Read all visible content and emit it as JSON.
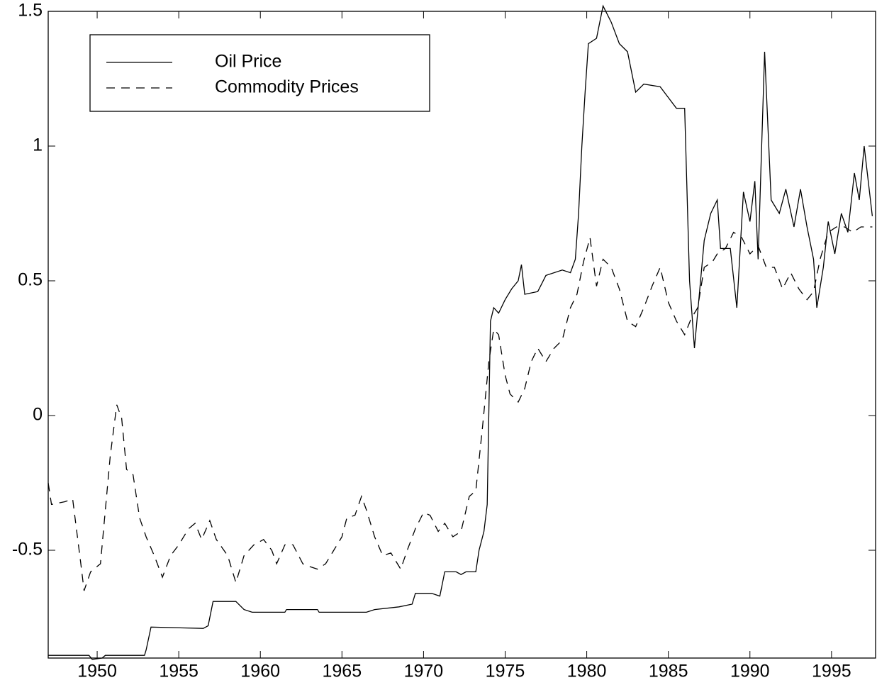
{
  "chart_data": {
    "type": "line",
    "xlim": [
      1947,
      1997.7
    ],
    "ylim": [
      -0.9,
      1.5
    ],
    "xticks": [
      1950,
      1955,
      1960,
      1965,
      1970,
      1975,
      1980,
      1985,
      1990,
      1995
    ],
    "yticks": [
      -0.5,
      0,
      0.5,
      1,
      1.5
    ],
    "legend": "upper left",
    "series": [
      {
        "name": "Oil Price",
        "color": "#000000",
        "linestyle": "solid",
        "x": [
          1947.0,
          1949.5,
          1949.7,
          1950.3,
          1950.5,
          1952.9,
          1953.0,
          1953.3,
          1956.5,
          1956.8,
          1957.1,
          1958.5,
          1959.0,
          1959.5,
          1961.5,
          1961.6,
          1963.5,
          1963.6,
          1966.5,
          1967.0,
          1968.5,
          1969.3,
          1969.5,
          1970.5,
          1971.0,
          1971.3,
          1972.0,
          1972.3,
          1972.6,
          1973.2,
          1973.4,
          1973.7,
          1973.9,
          1974.1,
          1974.3,
          1974.6,
          1975.0,
          1975.4,
          1975.8,
          1976.0,
          1976.2,
          1977.0,
          1977.5,
          1978.5,
          1979.0,
          1979.3,
          1979.5,
          1979.7,
          1979.9,
          1980.1,
          1980.6,
          1981.0,
          1981.5,
          1982.0,
          1982.5,
          1983.0,
          1983.5,
          1984.5,
          1985.0,
          1985.5,
          1986.0,
          1986.3,
          1986.6,
          1986.9,
          1987.2,
          1987.6,
          1988.0,
          1988.2,
          1988.8,
          1989.2,
          1989.6,
          1990.0,
          1990.3,
          1990.5,
          1990.9,
          1991.3,
          1991.8,
          1992.2,
          1992.7,
          1993.1,
          1993.5,
          1993.9,
          1994.1,
          1994.5,
          1994.8,
          1995.2,
          1995.6,
          1996.0,
          1996.4,
          1996.7,
          1997.0,
          1997.5
        ],
        "values": [
          -0.89,
          -0.89,
          -0.905,
          -0.9,
          -0.89,
          -0.89,
          -0.87,
          -0.785,
          -0.79,
          -0.78,
          -0.69,
          -0.69,
          -0.72,
          -0.73,
          -0.73,
          -0.72,
          -0.72,
          -0.73,
          -0.73,
          -0.72,
          -0.71,
          -0.7,
          -0.66,
          -0.66,
          -0.67,
          -0.58,
          -0.58,
          -0.59,
          -0.58,
          -0.58,
          -0.5,
          -0.43,
          -0.33,
          0.35,
          0.4,
          0.38,
          0.43,
          0.47,
          0.5,
          0.56,
          0.45,
          0.46,
          0.52,
          0.54,
          0.53,
          0.58,
          0.75,
          1.0,
          1.2,
          1.38,
          1.4,
          1.52,
          1.46,
          1.38,
          1.35,
          1.2,
          1.23,
          1.22,
          1.18,
          1.14,
          1.14,
          0.5,
          0.25,
          0.45,
          0.65,
          0.75,
          0.8,
          0.62,
          0.62,
          0.4,
          0.83,
          0.72,
          0.87,
          0.58,
          1.35,
          0.8,
          0.75,
          0.84,
          0.7,
          0.84,
          0.7,
          0.58,
          0.4,
          0.55,
          0.72,
          0.6,
          0.75,
          0.68,
          0.9,
          0.8,
          1.0,
          0.74
        ]
      },
      {
        "name": "Commodity Prices",
        "color": "#000000",
        "linestyle": "dashed",
        "x": [
          1947.0,
          1947.2,
          1948.0,
          1948.5,
          1949.0,
          1949.2,
          1949.6,
          1950.2,
          1950.8,
          1951.2,
          1951.5,
          1951.8,
          1952.2,
          1952.6,
          1953.0,
          1953.5,
          1954.0,
          1954.5,
          1955.0,
          1955.6,
          1956.0,
          1956.4,
          1956.9,
          1957.3,
          1958.0,
          1958.5,
          1959.0,
          1959.6,
          1960.2,
          1960.7,
          1961.0,
          1961.5,
          1962.0,
          1962.6,
          1963.0,
          1963.5,
          1964.0,
          1964.5,
          1965.0,
          1965.3,
          1965.8,
          1966.2,
          1966.5,
          1967.0,
          1967.5,
          1968.0,
          1968.6,
          1969.0,
          1969.5,
          1970.0,
          1970.4,
          1970.9,
          1971.3,
          1971.8,
          1972.3,
          1972.8,
          1973.2,
          1973.6,
          1974.0,
          1974.3,
          1974.6,
          1975.0,
          1975.3,
          1975.8,
          1976.2,
          1976.6,
          1977.0,
          1977.5,
          1978.0,
          1978.5,
          1979.0,
          1979.4,
          1979.8,
          1980.2,
          1980.6,
          1981.0,
          1981.5,
          1982.0,
          1982.5,
          1983.0,
          1983.5,
          1984.0,
          1984.5,
          1985.0,
          1985.5,
          1986.0,
          1986.4,
          1986.8,
          1987.2,
          1987.7,
          1988.0,
          1988.5,
          1989.0,
          1989.5,
          1990.0,
          1990.5,
          1991.0,
          1991.5,
          1992.0,
          1992.5,
          1993.0,
          1993.5,
          1993.9,
          1994.3,
          1994.8,
          1995.3,
          1995.8,
          1996.3,
          1996.8,
          1997.5
        ],
        "values": [
          -0.25,
          -0.33,
          -0.32,
          -0.31,
          -0.55,
          -0.65,
          -0.58,
          -0.55,
          -0.15,
          0.04,
          -0.01,
          -0.2,
          -0.22,
          -0.38,
          -0.45,
          -0.52,
          -0.6,
          -0.52,
          -0.48,
          -0.42,
          -0.4,
          -0.46,
          -0.39,
          -0.46,
          -0.52,
          -0.62,
          -0.52,
          -0.48,
          -0.46,
          -0.5,
          -0.55,
          -0.48,
          -0.48,
          -0.55,
          -0.56,
          -0.57,
          -0.55,
          -0.5,
          -0.45,
          -0.38,
          -0.37,
          -0.3,
          -0.35,
          -0.45,
          -0.52,
          -0.51,
          -0.57,
          -0.5,
          -0.42,
          -0.36,
          -0.37,
          -0.43,
          -0.4,
          -0.45,
          -0.43,
          -0.3,
          -0.28,
          -0.05,
          0.2,
          0.32,
          0.3,
          0.15,
          0.08,
          0.05,
          0.1,
          0.2,
          0.25,
          0.2,
          0.25,
          0.28,
          0.4,
          0.45,
          0.57,
          0.66,
          0.48,
          0.58,
          0.55,
          0.47,
          0.35,
          0.33,
          0.4,
          0.48,
          0.55,
          0.42,
          0.35,
          0.3,
          0.36,
          0.4,
          0.55,
          0.57,
          0.6,
          0.62,
          0.68,
          0.66,
          0.6,
          0.63,
          0.55,
          0.55,
          0.47,
          0.53,
          0.47,
          0.43,
          0.46,
          0.58,
          0.68,
          0.7,
          0.7,
          0.68,
          0.7,
          0.7
        ]
      }
    ]
  }
}
